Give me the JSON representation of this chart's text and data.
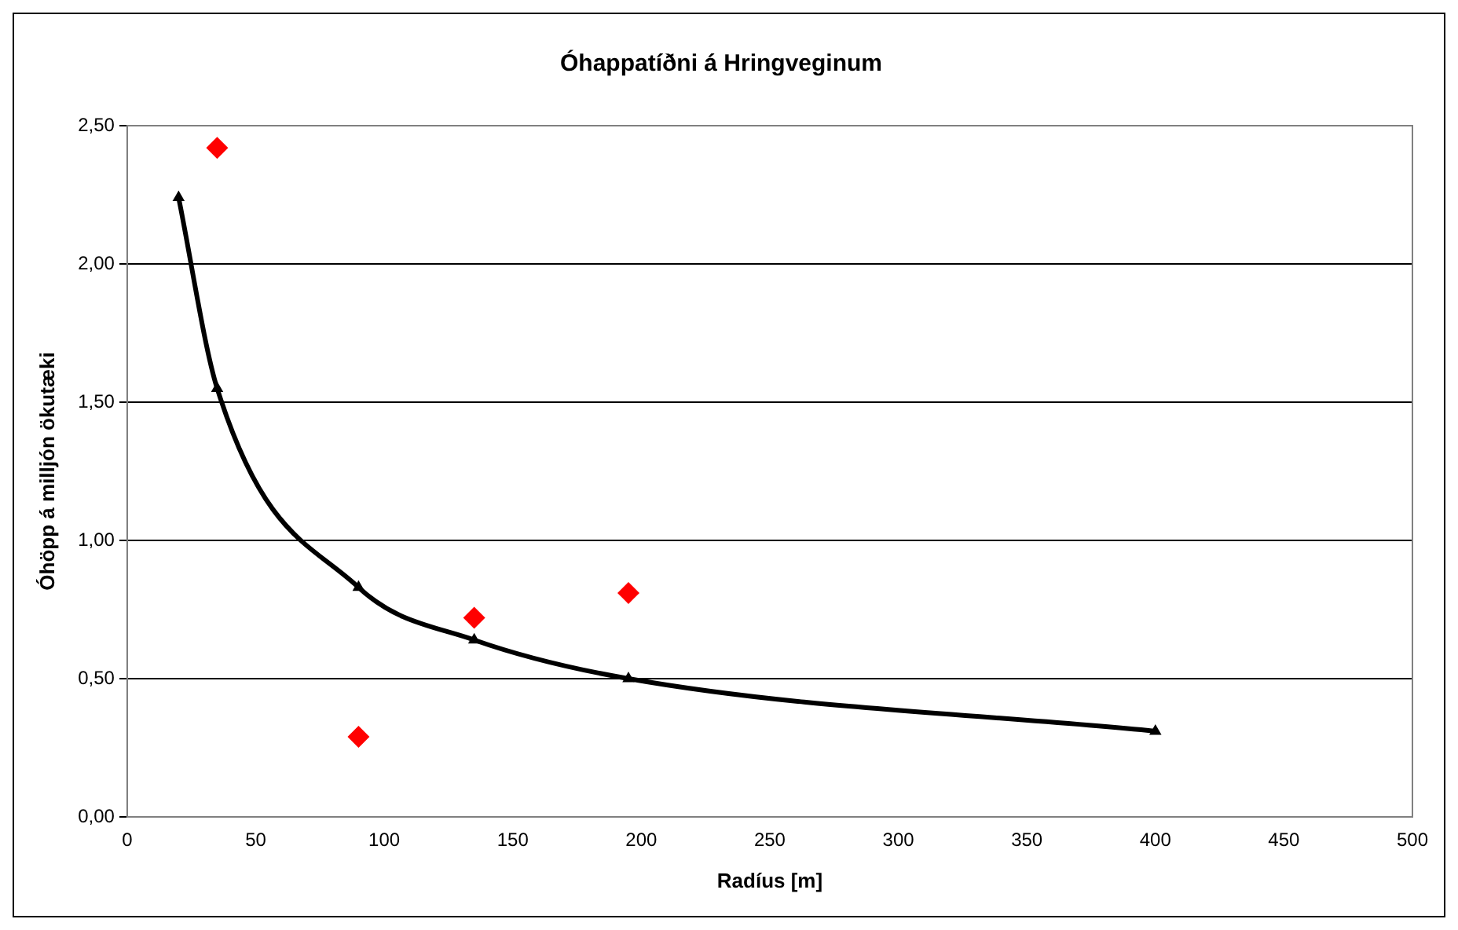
{
  "chart_data": {
    "type": "scatter",
    "title": "Óhappatíðni á Hringveginum",
    "xlabel": "Radíus [m]",
    "ylabel": "Óhöpp á milljón ökutæki",
    "xlim": [
      0,
      500
    ],
    "xticks": [
      0,
      50,
      100,
      150,
      200,
      250,
      300,
      350,
      400,
      450,
      500
    ],
    "ylim": [
      0,
      2.5
    ],
    "yticks": [
      {
        "value": 0,
        "label": "0,00"
      },
      {
        "value": 0.5,
        "label": "0,50"
      },
      {
        "value": 1,
        "label": "1,00"
      },
      {
        "value": 1.5,
        "label": "1,50"
      },
      {
        "value": 2,
        "label": "2,00"
      },
      {
        "value": 2.5,
        "label": "2,50"
      }
    ],
    "grid": "y",
    "legend": false,
    "series": [
      {
        "type": "scatter",
        "color": "#ff0000",
        "marker": "diamond",
        "x": [
          35,
          90,
          135,
          195
        ],
        "values": [
          2.42,
          0.29,
          0.72,
          0.81
        ]
      },
      {
        "type": "line",
        "color": "#000000",
        "marker": "triangle",
        "line_style": "solid",
        "x": [
          20,
          35,
          90,
          135,
          195,
          400
        ],
        "values": [
          2.24,
          1.55,
          0.83,
          0.64,
          0.5,
          0.31
        ]
      }
    ]
  }
}
